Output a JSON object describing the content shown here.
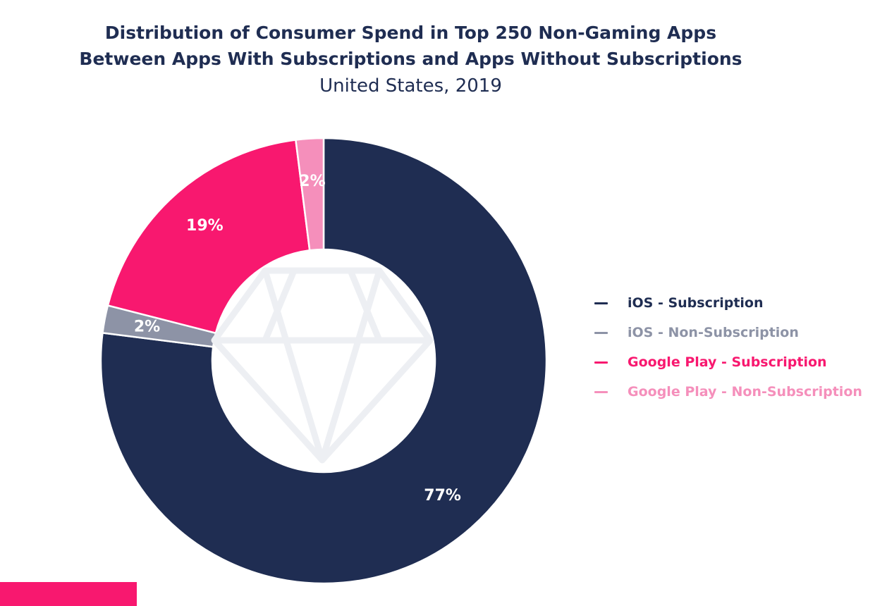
{
  "chart_data": {
    "type": "pie",
    "title_lines": [
      "Distribution of Consumer Spend in Top 250 Non-Gaming Apps",
      "Between Apps With Subscriptions and Apps Without Subscriptions"
    ],
    "subtitle": "United States, 2019",
    "donut": true,
    "legend_position": "right",
    "slices": [
      {
        "name": "iOS - Subscription",
        "value": 77,
        "label": "77%",
        "color": "#1f2d52"
      },
      {
        "name": "iOS - Non-Subscription",
        "value": 2,
        "label": "2%",
        "color": "#8d93a6"
      },
      {
        "name": "Google Play - Subscription",
        "value": 19,
        "label": "19%",
        "color": "#f8186f"
      },
      {
        "name": "Google Play - Non-Subscription",
        "value": 2,
        "label": "2%",
        "color": "#f58fbb"
      }
    ]
  },
  "colors": {
    "title": "#1f2d52",
    "accent_bar": "#f8186f",
    "watermark": "#edeff3"
  }
}
